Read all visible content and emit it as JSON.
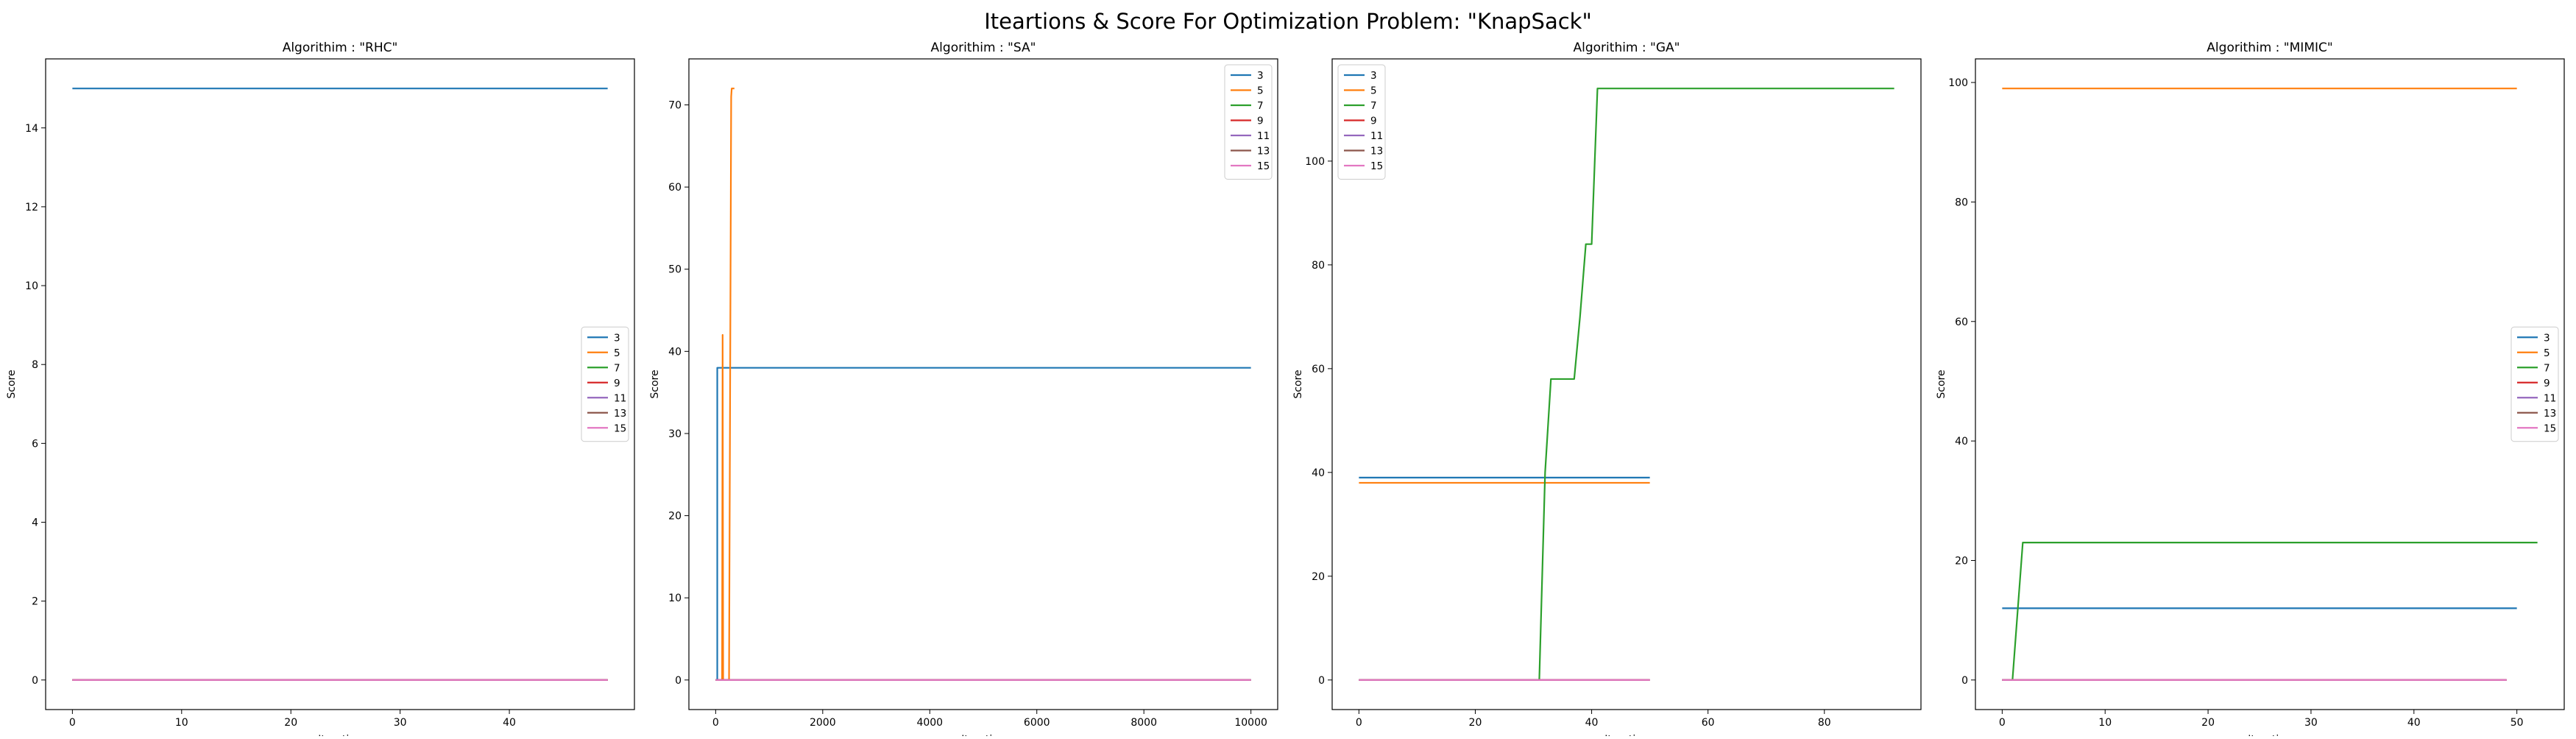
{
  "figure": {
    "title": "Iteartions & Score For Optimization Problem: \"KnapSack\""
  },
  "series_colors": {
    "3": "#1f77b4",
    "5": "#ff7f0e",
    "7": "#2ca02c",
    "9": "#d62728",
    "11": "#9467bd",
    "13": "#8c564b",
    "15": "#e377c2"
  },
  "chart_data": [
    {
      "type": "line",
      "title": "Algorithim : \"RHC\"",
      "xlabel": "Iteration",
      "ylabel": "Score",
      "xlim": [
        -2.45,
        51.45
      ],
      "ylim": [
        -0.75,
        15.75
      ],
      "xticks": [
        0,
        10,
        20,
        30,
        40
      ],
      "yticks": [
        0,
        2,
        4,
        6,
        8,
        10,
        12,
        14
      ],
      "legend_position": "center-right",
      "series": [
        {
          "name": "3",
          "x": [
            0,
            49
          ],
          "y": [
            15,
            15
          ]
        },
        {
          "name": "5",
          "x": [
            0,
            49
          ],
          "y": [
            0,
            0
          ]
        },
        {
          "name": "7",
          "x": [
            0,
            49
          ],
          "y": [
            0,
            0
          ]
        },
        {
          "name": "9",
          "x": [
            0,
            49
          ],
          "y": [
            0,
            0
          ]
        },
        {
          "name": "11",
          "x": [
            0,
            49
          ],
          "y": [
            0,
            0
          ]
        },
        {
          "name": "13",
          "x": [
            0,
            49
          ],
          "y": [
            0,
            0
          ]
        },
        {
          "name": "15",
          "x": [
            0,
            49
          ],
          "y": [
            0,
            0
          ]
        }
      ]
    },
    {
      "type": "line",
      "title": "Algorithim : \"SA\"",
      "xlabel": "Iteration",
      "ylabel": "Score",
      "xlim": [
        -500,
        10500
      ],
      "ylim": [
        -3.6,
        75.6
      ],
      "xticks": [
        0,
        2000,
        4000,
        6000,
        8000,
        10000
      ],
      "yticks": [
        0,
        10,
        20,
        30,
        40,
        50,
        60,
        70
      ],
      "legend_position": "top-right",
      "series": [
        {
          "name": "3",
          "x": [
            0,
            30,
            30,
            10000
          ],
          "y": [
            0,
            0,
            38,
            38
          ]
        },
        {
          "name": "5",
          "x": [
            0,
            120,
            130,
            140,
            250,
            290,
            300,
            350
          ],
          "y": [
            0,
            0,
            42,
            0,
            0,
            71,
            72,
            72
          ]
        },
        {
          "name": "7",
          "x": [
            0,
            10000
          ],
          "y": [
            0,
            0
          ]
        },
        {
          "name": "9",
          "x": [
            0,
            10000
          ],
          "y": [
            0,
            0
          ]
        },
        {
          "name": "11",
          "x": [
            0,
            10000
          ],
          "y": [
            0,
            0
          ]
        },
        {
          "name": "13",
          "x": [
            0,
            10000
          ],
          "y": [
            0,
            0
          ]
        },
        {
          "name": "15",
          "x": [
            0,
            10000
          ],
          "y": [
            0,
            0
          ]
        }
      ]
    },
    {
      "type": "line",
      "title": "Algorithim : \"GA\"",
      "xlabel": "Iteration",
      "ylabel": "Score",
      "xlim": [
        -4.6,
        96.6
      ],
      "ylim": [
        -5.7,
        119.7
      ],
      "xticks": [
        0,
        20,
        40,
        60,
        80
      ],
      "yticks": [
        0,
        20,
        40,
        60,
        80,
        100
      ],
      "legend_position": "top-left",
      "series": [
        {
          "name": "3",
          "x": [
            0,
            50
          ],
          "y": [
            39,
            39
          ]
        },
        {
          "name": "5",
          "x": [
            0,
            50
          ],
          "y": [
            38,
            38
          ]
        },
        {
          "name": "7",
          "x": [
            0,
            31,
            32,
            33,
            37,
            38,
            39,
            40,
            41,
            92
          ],
          "y": [
            0,
            0,
            40,
            58,
            58,
            70,
            84,
            84,
            114,
            114
          ]
        },
        {
          "name": "9",
          "x": [
            0,
            50
          ],
          "y": [
            0,
            0
          ]
        },
        {
          "name": "11",
          "x": [
            0,
            50
          ],
          "y": [
            0,
            0
          ]
        },
        {
          "name": "13",
          "x": [
            0,
            50
          ],
          "y": [
            0,
            0
          ]
        },
        {
          "name": "15",
          "x": [
            0,
            50
          ],
          "y": [
            0,
            0
          ]
        }
      ]
    },
    {
      "type": "line",
      "title": "Algorithim : \"MIMIC\"",
      "xlabel": "Iteration",
      "ylabel": "Score",
      "xlim": [
        -2.6,
        54.6
      ],
      "ylim": [
        -4.95,
        103.95
      ],
      "xticks": [
        0,
        10,
        20,
        30,
        40,
        50
      ],
      "yticks": [
        0,
        20,
        40,
        60,
        80,
        100
      ],
      "legend_position": "center-right",
      "series": [
        {
          "name": "3",
          "x": [
            0,
            50
          ],
          "y": [
            12,
            12
          ]
        },
        {
          "name": "5",
          "x": [
            0,
            50
          ],
          "y": [
            99,
            99
          ]
        },
        {
          "name": "7",
          "x": [
            0,
            1,
            2,
            52
          ],
          "y": [
            0,
            0,
            23,
            23
          ]
        },
        {
          "name": "9",
          "x": [
            0,
            49
          ],
          "y": [
            0,
            0
          ]
        },
        {
          "name": "11",
          "x": [
            0,
            49
          ],
          "y": [
            0,
            0
          ]
        },
        {
          "name": "13",
          "x": [
            0,
            49
          ],
          "y": [
            0,
            0
          ]
        },
        {
          "name": "15",
          "x": [
            0,
            49
          ],
          "y": [
            0,
            0
          ]
        }
      ]
    }
  ]
}
